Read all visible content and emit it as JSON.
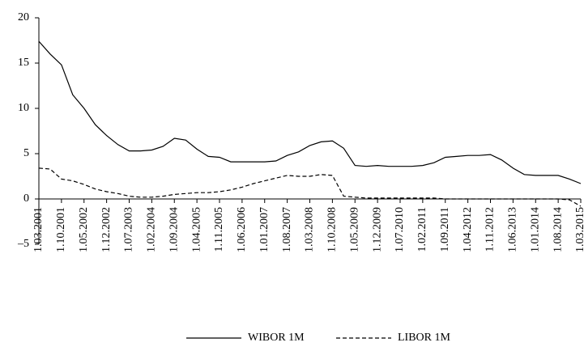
{
  "chart_data": {
    "type": "line",
    "categories": [
      "1.03.2001",
      null,
      "1.10.2001",
      null,
      "1.05.2002",
      null,
      "1.12.2002",
      null,
      "1.07.2003",
      null,
      "1.02.2004",
      null,
      "1.09.2004",
      null,
      "1.04.2005",
      null,
      "1.11.2005",
      null,
      "1.06.2006",
      null,
      "1.01.2007",
      null,
      "1.08.2007",
      null,
      "1.03.2008",
      null,
      "1.10.2008",
      null,
      "1.05.2009",
      null,
      "1.12.2009",
      null,
      "1.07.2010",
      null,
      "1.02.2011",
      null,
      "1.09.2011",
      null,
      "1.04.2012",
      null,
      "1.11.2012",
      null,
      "1.06.2013",
      null,
      "1.01.2014",
      null,
      "1.08.2014",
      null,
      "1.03.2015"
    ],
    "series": [
      {
        "name": "WIBOR 1M",
        "color": "#000000",
        "dash": "solid",
        "values": [
          17.4,
          16.0,
          14.8,
          11.5,
          10.0,
          8.2,
          7.0,
          6.0,
          5.3,
          5.3,
          5.4,
          5.8,
          6.7,
          6.5,
          5.5,
          4.7,
          4.6,
          4.1,
          4.1,
          4.1,
          4.1,
          4.2,
          4.8,
          5.2,
          5.9,
          6.3,
          6.4,
          5.6,
          3.7,
          3.6,
          3.7,
          3.6,
          3.6,
          3.6,
          3.7,
          4.0,
          4.6,
          4.7,
          4.8,
          4.8,
          4.9,
          4.3,
          3.4,
          2.7,
          2.6,
          2.6,
          2.6,
          2.2,
          1.7
        ]
      },
      {
        "name": "LIBOR 1M",
        "color": "#000000",
        "dash": "dashed",
        "values": [
          3.4,
          3.3,
          2.2,
          2.0,
          1.6,
          1.1,
          0.8,
          0.6,
          0.3,
          0.2,
          0.2,
          0.3,
          0.5,
          0.6,
          0.7,
          0.7,
          0.8,
          1.0,
          1.3,
          1.7,
          2.0,
          2.3,
          2.6,
          2.5,
          2.5,
          2.7,
          2.6,
          0.3,
          0.2,
          0.1,
          0.1,
          0.1,
          0.1,
          0.1,
          0.1,
          0.1,
          0.0,
          0.0,
          0.0,
          0.0,
          0.0,
          0.0,
          0.0,
          0.0,
          0.0,
          0.0,
          0.0,
          -0.1,
          -0.8
        ]
      }
    ],
    "ylim": [
      -5,
      20
    ],
    "yticks": [
      {
        "value": -5,
        "label": "–5"
      },
      0,
      5,
      10,
      15,
      20
    ],
    "grid": false,
    "legend": "bottom"
  }
}
